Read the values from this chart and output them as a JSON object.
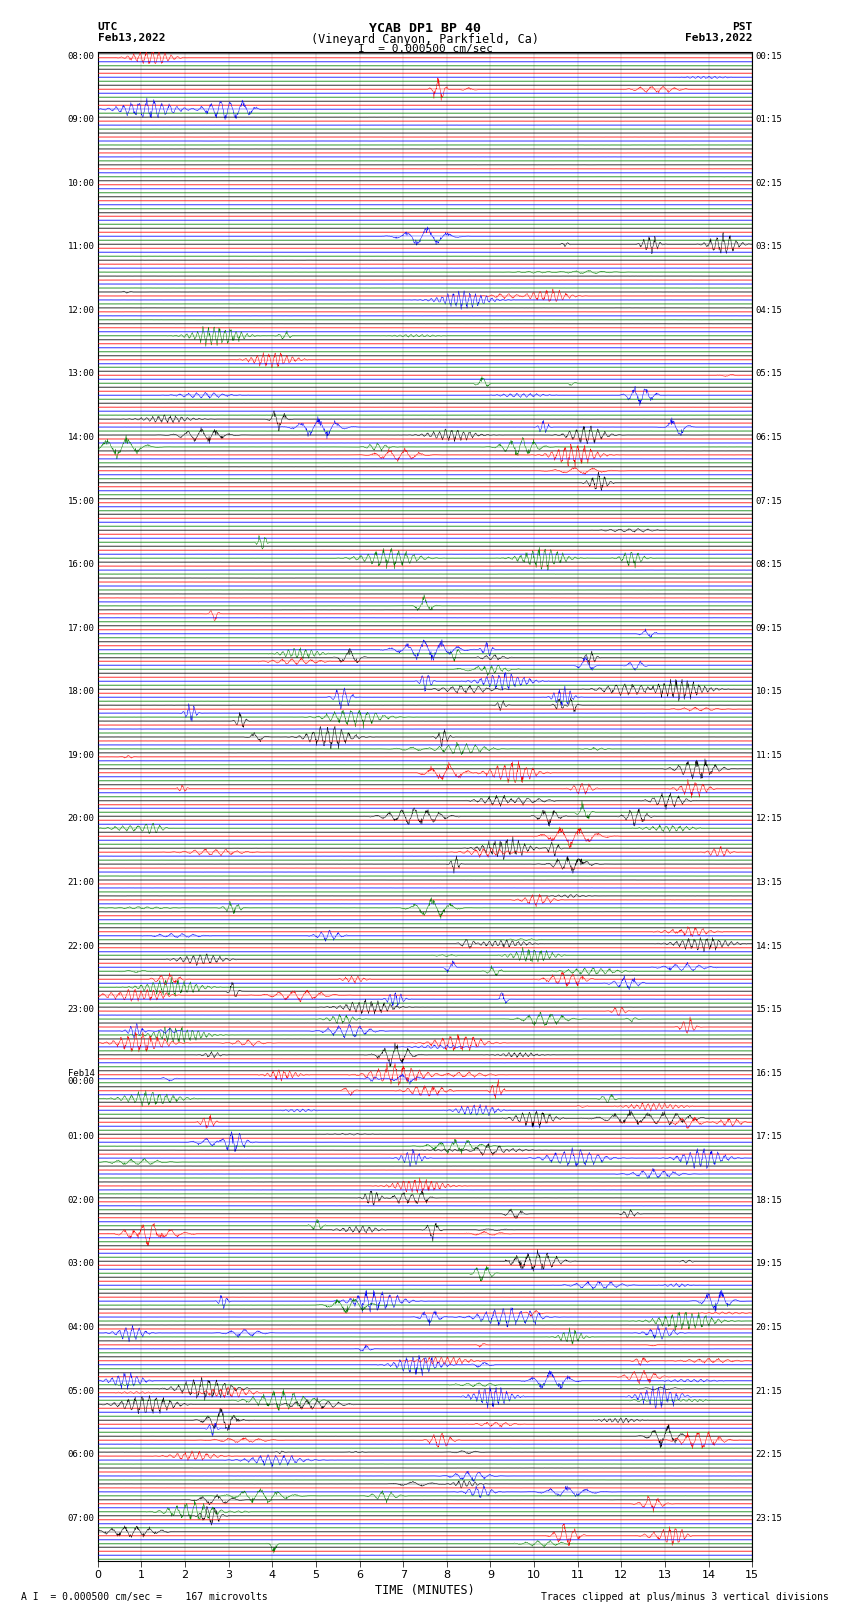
{
  "title_line1": "YCAB DP1 BP 40",
  "title_line2": "(Vineyard Canyon, Parkfield, Ca)",
  "title_line3": "I  = 0.000500 cm/sec",
  "left_label_date1": "UTC",
  "left_label_date2": "Feb13,2022",
  "right_label_date1": "PST",
  "right_label_date2": "Feb13,2022",
  "xlabel": "TIME (MINUTES)",
  "bottom_left": "A I  = 0.000500 cm/sec =    167 microvolts",
  "bottom_right": "Traces clipped at plus/minus 3 vertical divisions",
  "xlim": [
    0,
    15
  ],
  "xticks": [
    0,
    1,
    2,
    3,
    4,
    5,
    6,
    7,
    8,
    9,
    10,
    11,
    12,
    13,
    14,
    15
  ],
  "bg_color": "#ffffff",
  "grid_color": "#aaaaaa",
  "trace_colors": [
    "black",
    "red",
    "blue",
    "green"
  ],
  "left_times": [
    "08:00",
    "",
    "",
    "",
    "09:00",
    "",
    "",
    "",
    "10:00",
    "",
    "",
    "",
    "11:00",
    "",
    "",
    "",
    "12:00",
    "",
    "",
    "",
    "13:00",
    "",
    "",
    "",
    "14:00",
    "",
    "",
    "",
    "15:00",
    "",
    "",
    "",
    "16:00",
    "",
    "",
    "",
    "17:00",
    "",
    "",
    "",
    "18:00",
    "",
    "",
    "",
    "19:00",
    "",
    "",
    "",
    "20:00",
    "",
    "",
    "",
    "21:00",
    "",
    "",
    "",
    "22:00",
    "",
    "",
    "",
    "23:00",
    "",
    "",
    "",
    "Feb14\n00:00",
    "",
    "",
    "",
    "01:00",
    "",
    "",
    "",
    "02:00",
    "",
    "",
    "",
    "03:00",
    "",
    "",
    "",
    "04:00",
    "",
    "",
    "",
    "05:00",
    "",
    "",
    "",
    "06:00",
    "",
    "",
    "",
    "07:00",
    "",
    ""
  ],
  "right_times": [
    "00:15",
    "",
    "",
    "",
    "01:15",
    "",
    "",
    "",
    "02:15",
    "",
    "",
    "",
    "03:15",
    "",
    "",
    "",
    "04:15",
    "",
    "",
    "",
    "05:15",
    "",
    "",
    "",
    "06:15",
    "",
    "",
    "",
    "07:15",
    "",
    "",
    "",
    "08:15",
    "",
    "",
    "",
    "09:15",
    "",
    "",
    "",
    "10:15",
    "",
    "",
    "",
    "11:15",
    "",
    "",
    "",
    "12:15",
    "",
    "",
    "",
    "13:15",
    "",
    "",
    "",
    "14:15",
    "",
    "",
    "",
    "15:15",
    "",
    "",
    "",
    "16:15",
    "",
    "",
    "",
    "17:15",
    "",
    "",
    "",
    "18:15",
    "",
    "",
    "",
    "19:15",
    "",
    "",
    "",
    "20:15",
    "",
    "",
    "",
    "21:15",
    "",
    "",
    "",
    "22:15",
    "",
    "",
    "",
    "23:15",
    "",
    ""
  ],
  "n_rows": 95,
  "seed": 42
}
